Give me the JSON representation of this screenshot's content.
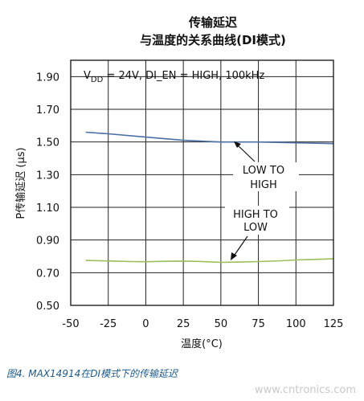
{
  "chart_data": {
    "type": "line",
    "title_line1": "传输延迟",
    "title_line2": "与温度的关系曲线(DI模式)",
    "conditions_text_pre": "V",
    "conditions_text_sub": "DD",
    "conditions_text_post": " = 24V, DI_EN = HIGH, 100kHz",
    "xlabel": "温度(°C)",
    "ylabel": "P传输延迟 (μs)",
    "xlim": [
      -50,
      125
    ],
    "ylim": [
      0.5,
      2.0
    ],
    "x_ticks": [
      -50,
      -25,
      0,
      25,
      50,
      75,
      100,
      125
    ],
    "x_tick_labels": [
      "-50",
      "-25",
      "0",
      "25",
      "50",
      "75",
      "100",
      "125"
    ],
    "y_ticks": [
      0.5,
      0.7,
      0.9,
      1.1,
      1.3,
      1.5,
      1.7,
      1.9
    ],
    "y_tick_labels": [
      "0.50",
      "0.70",
      "0.90",
      "1.10",
      "1.30",
      "1.50",
      "1.70",
      "1.90"
    ],
    "grid": true,
    "series": [
      {
        "name": "LOW TO HIGH",
        "label_line1": "LOW TO",
        "label_line2": "HIGH",
        "color": "#4a6fa5",
        "x": [
          -40,
          -25,
          0,
          25,
          50,
          75,
          100,
          125
        ],
        "y": [
          1.56,
          1.55,
          1.53,
          1.51,
          1.5,
          1.5,
          1.495,
          1.49
        ]
      },
      {
        "name": "HIGH TO LOW",
        "label_line1": "HIGH TO",
        "label_line2": "LOW",
        "color": "#9bbf5a",
        "x": [
          -40,
          -25,
          -10,
          0,
          15,
          25,
          35,
          50,
          65,
          75,
          90,
          100,
          110,
          125
        ],
        "y": [
          0.775,
          0.772,
          0.768,
          0.767,
          0.77,
          0.771,
          0.769,
          0.763,
          0.766,
          0.768,
          0.773,
          0.778,
          0.781,
          0.785
        ]
      }
    ]
  },
  "caption": "图4. MAX14914在DI模式下的传输延迟",
  "watermark": "www.cntronics.com"
}
